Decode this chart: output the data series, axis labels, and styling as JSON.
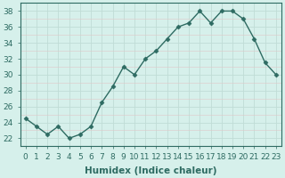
{
  "x": [
    0,
    1,
    2,
    3,
    4,
    5,
    6,
    7,
    8,
    9,
    10,
    11,
    12,
    13,
    14,
    15,
    16,
    17,
    18,
    19,
    20,
    21,
    22,
    23
  ],
  "y": [
    24.5,
    23.5,
    22.5,
    23.5,
    22.0,
    22.5,
    23.5,
    26.5,
    28.5,
    31.0,
    30.0,
    32.0,
    33.0,
    34.5,
    36.0,
    36.5,
    38.0,
    36.5,
    38.0,
    38.0,
    37.0,
    34.5,
    31.5,
    30.0
  ],
  "line_color": "#2e6b62",
  "marker": "D",
  "marker_size": 2.5,
  "bg_color": "#d6f0eb",
  "major_grid_color": "#c0dcd6",
  "minor_grid_color": "#e0c8c8",
  "xlabel": "Humidex (Indice chaleur)",
  "ylabel": "",
  "xlim": [
    -0.5,
    23.5
  ],
  "ylim": [
    21.0,
    39.0
  ],
  "yticks": [
    22,
    24,
    26,
    28,
    30,
    32,
    34,
    36,
    38
  ],
  "xticks": [
    0,
    1,
    2,
    3,
    4,
    5,
    6,
    7,
    8,
    9,
    10,
    11,
    12,
    13,
    14,
    15,
    16,
    17,
    18,
    19,
    20,
    21,
    22,
    23
  ],
  "xlabel_fontsize": 7.5,
  "tick_fontsize": 6.5,
  "line_width": 1.0
}
